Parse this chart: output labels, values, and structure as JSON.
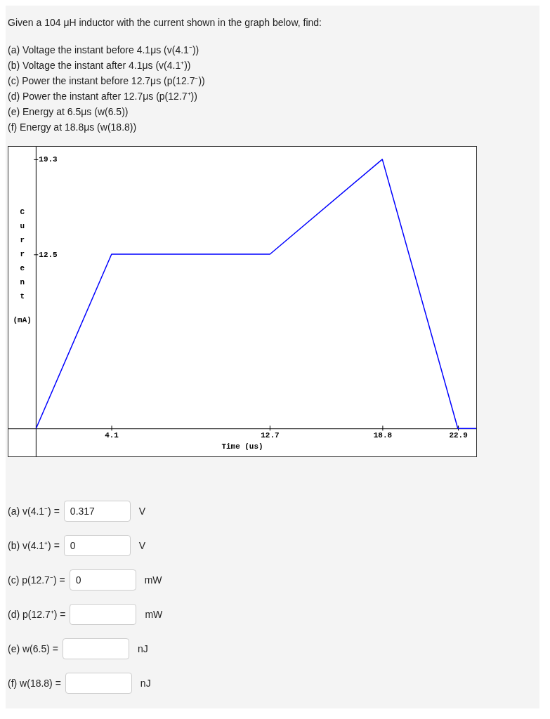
{
  "chart_data": {
    "type": "line",
    "title": "Given a 104 μH inductor with the current shown in the graph below, find:",
    "xlabel": "Time (us)",
    "ylabel": "Current (mA)",
    "x": [
      0,
      4.1,
      12.7,
      18.8,
      22.9,
      23.9
    ],
    "series": [
      {
        "color": "#0000ff",
        "values": [
          0,
          12.5,
          12.5,
          19.3,
          0,
          0
        ]
      }
    ],
    "xlim": [
      -1.5,
      23.9
    ],
    "ylim": [
      -2,
      20.2
    ],
    "xticks": [
      4.1,
      12.7,
      18.8,
      22.9
    ],
    "yticks": [
      12.5,
      19.3
    ],
    "grid": false,
    "legend": false,
    "marker": "none",
    "line_style": "solid",
    "annotations": [
      "(a) Voltage the instant before 4.1μs (v(4.1⁻))",
      "(b) Voltage the instant after 4.1μs (v(4.1⁺))",
      "(c) Power the instant before 12.7μs (p(12.7⁻))",
      "(d) Power the instant after 12.7μs (p(12.7⁺))",
      "(e) Energy at 6.5μs (w(6.5))",
      "(f) Energy at 18.8μs (w(18.8))",
      "(a) v(4.1⁻) =",
      "0.317",
      "V",
      "(b) v(4.1⁺) =",
      "0",
      "V",
      "(c) p(12.7⁻) =",
      "0",
      "mW",
      "(d) p(12.7⁺) =",
      "mW",
      "(e) w(6.5) =",
      "nJ",
      "(f) w(18.8) =",
      "nJ"
    ]
  }
}
